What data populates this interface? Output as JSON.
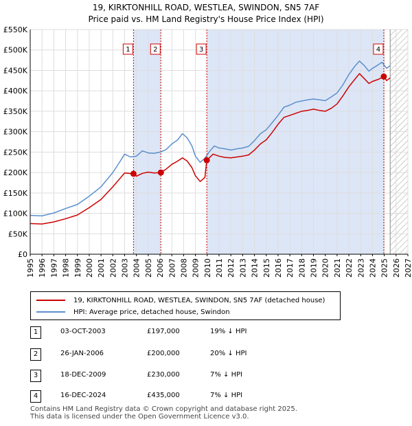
{
  "title_line1": "19, KIRKTONHILL ROAD, WESTLEA, SWINDON, SN5 7AF",
  "title_line2": "Price paid vs. HM Land Registry's House Price Index (HPI)",
  "legend": {
    "property": "19, KIRKTONHILL ROAD, WESTLEA, SWINDON, SN5 7AF (detached house)",
    "hpi": "HPI: Average price, detached house, Swindon"
  },
  "colors": {
    "property": "#cc0000",
    "hpi": "#5b8fcc",
    "shade": "#dde6f7",
    "grid": "#dddddd"
  },
  "transactions": [
    {
      "num": "1",
      "date": "03-OCT-2003",
      "price": "£197,000",
      "hpi": "19% ↓ HPI"
    },
    {
      "num": "2",
      "date": "26-JAN-2006",
      "price": "£200,000",
      "hpi": "20% ↓ HPI"
    },
    {
      "num": "3",
      "date": "18-DEC-2009",
      "price": "£230,000",
      "hpi": "7% ↓ HPI"
    },
    {
      "num": "4",
      "date": "16-DEC-2024",
      "price": "£435,000",
      "hpi": "7% ↓ HPI"
    }
  ],
  "footer": {
    "line1": "Contains HM Land Registry data © Crown copyright and database right 2025.",
    "line2": "This data is licensed under the Open Government Licence v3.0."
  },
  "chart_data": {
    "type": "line",
    "xlim": [
      1995,
      2027
    ],
    "ylim": [
      0,
      550000
    ],
    "x_ticks": [
      "1995",
      "1996",
      "1997",
      "1998",
      "1999",
      "2000",
      "2001",
      "2002",
      "2003",
      "2004",
      "2005",
      "2006",
      "2007",
      "2008",
      "2009",
      "2010",
      "2011",
      "2012",
      "2013",
      "2014",
      "2015",
      "2016",
      "2017",
      "2018",
      "2019",
      "2020",
      "2021",
      "2022",
      "2023",
      "2024",
      "2025",
      "2026",
      "2027"
    ],
    "y_ticks": [
      {
        "value": 0,
        "label": "£0"
      },
      {
        "value": 50000,
        "label": "£50K"
      },
      {
        "value": 100000,
        "label": "£100K"
      },
      {
        "value": 150000,
        "label": "£150K"
      },
      {
        "value": 200000,
        "label": "£200K"
      },
      {
        "value": 250000,
        "label": "£250K"
      },
      {
        "value": 300000,
        "label": "£300K"
      },
      {
        "value": 350000,
        "label": "£350K"
      },
      {
        "value": 400000,
        "label": "£400K"
      },
      {
        "value": 450000,
        "label": "£450K"
      },
      {
        "value": 500000,
        "label": "£500K"
      },
      {
        "value": 550000,
        "label": "£550K"
      }
    ],
    "shaded_ranges": [
      [
        2003.75,
        2006.07
      ],
      [
        2009.96,
        2024.96
      ]
    ],
    "hatch_from": 2025.5,
    "sales": [
      {
        "label": "1",
        "x": 2003.75,
        "y": 197000
      },
      {
        "label": "2",
        "x": 2006.07,
        "y": 200000
      },
      {
        "label": "3",
        "x": 2009.96,
        "y": 230000
      },
      {
        "label": "4",
        "x": 2024.96,
        "y": 435000
      }
    ],
    "series": [
      {
        "name": "HPI: Average price, detached house, Swindon",
        "points": [
          [
            1995,
            95000
          ],
          [
            1996,
            94000
          ],
          [
            1997,
            101000
          ],
          [
            1998,
            112000
          ],
          [
            1999,
            122000
          ],
          [
            2000,
            142000
          ],
          [
            2001,
            165000
          ],
          [
            2002,
            200000
          ],
          [
            2002.5,
            222000
          ],
          [
            2003,
            245000
          ],
          [
            2003.5,
            238000
          ],
          [
            2004,
            240000
          ],
          [
            2004.5,
            253000
          ],
          [
            2005,
            248000
          ],
          [
            2005.5,
            247000
          ],
          [
            2006,
            250000
          ],
          [
            2006.5,
            256000
          ],
          [
            2007,
            270000
          ],
          [
            2007.5,
            280000
          ],
          [
            2007.9,
            295000
          ],
          [
            2008.3,
            285000
          ],
          [
            2008.7,
            265000
          ],
          [
            2009,
            240000
          ],
          [
            2009.4,
            225000
          ],
          [
            2009.8,
            235000
          ],
          [
            2010.2,
            252000
          ],
          [
            2010.6,
            265000
          ],
          [
            2011,
            260000
          ],
          [
            2011.5,
            258000
          ],
          [
            2012,
            255000
          ],
          [
            2012.5,
            258000
          ],
          [
            2013,
            260000
          ],
          [
            2013.5,
            264000
          ],
          [
            2014,
            278000
          ],
          [
            2014.5,
            295000
          ],
          [
            2015,
            305000
          ],
          [
            2015.5,
            322000
          ],
          [
            2016,
            340000
          ],
          [
            2016.5,
            360000
          ],
          [
            2017,
            365000
          ],
          [
            2017.5,
            372000
          ],
          [
            2018,
            375000
          ],
          [
            2018.5,
            378000
          ],
          [
            2019,
            380000
          ],
          [
            2019.5,
            378000
          ],
          [
            2020,
            376000
          ],
          [
            2020.5,
            385000
          ],
          [
            2021,
            395000
          ],
          [
            2021.5,
            415000
          ],
          [
            2022,
            440000
          ],
          [
            2022.5,
            460000
          ],
          [
            2022.9,
            473000
          ],
          [
            2023.3,
            462000
          ],
          [
            2023.7,
            448000
          ],
          [
            2024,
            455000
          ],
          [
            2024.4,
            462000
          ],
          [
            2024.8,
            470000
          ],
          [
            2025.2,
            455000
          ],
          [
            2025.5,
            462000
          ]
        ]
      },
      {
        "name": "19, KIRKTONHILL ROAD, WESTLEA, SWINDON, SN5 7AF (detached house)",
        "points": [
          [
            1995,
            75000
          ],
          [
            1996,
            74000
          ],
          [
            1997,
            79000
          ],
          [
            1998,
            87000
          ],
          [
            1999,
            96000
          ],
          [
            2000,
            114000
          ],
          [
            2001,
            134000
          ],
          [
            2002,
            165000
          ],
          [
            2002.5,
            182000
          ],
          [
            2003,
            199000
          ],
          [
            2003.75,
            197000
          ],
          [
            2004,
            191000
          ],
          [
            2004.5,
            198000
          ],
          [
            2005,
            201000
          ],
          [
            2005.5,
            199000
          ],
          [
            2006.07,
            200000
          ],
          [
            2006.5,
            208000
          ],
          [
            2007,
            220000
          ],
          [
            2007.5,
            228000
          ],
          [
            2007.9,
            236000
          ],
          [
            2008.3,
            228000
          ],
          [
            2008.7,
            212000
          ],
          [
            2009,
            192000
          ],
          [
            2009.4,
            178000
          ],
          [
            2009.8,
            188000
          ],
          [
            2009.96,
            230000
          ],
          [
            2010.5,
            245000
          ],
          [
            2011,
            240000
          ],
          [
            2011.5,
            237000
          ],
          [
            2012,
            236000
          ],
          [
            2012.5,
            238000
          ],
          [
            2013,
            240000
          ],
          [
            2013.5,
            243000
          ],
          [
            2014,
            255000
          ],
          [
            2014.5,
            270000
          ],
          [
            2015,
            280000
          ],
          [
            2015.5,
            298000
          ],
          [
            2016,
            318000
          ],
          [
            2016.5,
            335000
          ],
          [
            2017,
            340000
          ],
          [
            2017.5,
            345000
          ],
          [
            2018,
            350000
          ],
          [
            2018.5,
            352000
          ],
          [
            2019,
            355000
          ],
          [
            2019.5,
            352000
          ],
          [
            2020,
            350000
          ],
          [
            2020.5,
            357000
          ],
          [
            2021,
            368000
          ],
          [
            2021.5,
            388000
          ],
          [
            2022,
            410000
          ],
          [
            2022.5,
            428000
          ],
          [
            2022.9,
            442000
          ],
          [
            2023.3,
            430000
          ],
          [
            2023.7,
            418000
          ],
          [
            2024,
            423000
          ],
          [
            2024.5,
            428000
          ],
          [
            2024.96,
            435000
          ],
          [
            2025.2,
            425000
          ],
          [
            2025.5,
            432000
          ]
        ]
      }
    ]
  }
}
